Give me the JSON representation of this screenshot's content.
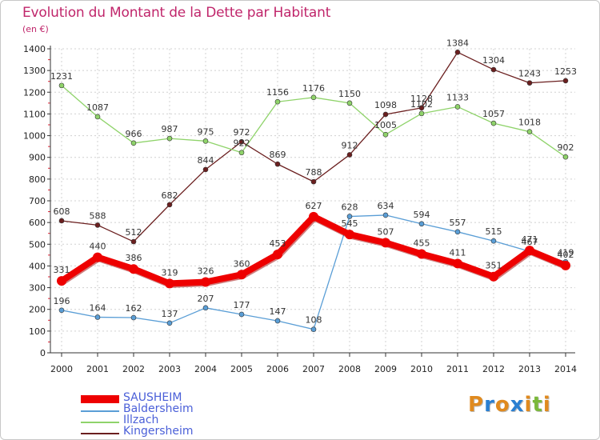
{
  "title": "Evolution du Montant de la Dette par Habitant",
  "unit": "(en €)",
  "logo": {
    "text": "Proxiti",
    "colors": [
      "#e08a1e",
      "#2a7fd1",
      "#e08a1e",
      "#2a7fd1",
      "#e08a1e",
      "#7ab83a",
      "#e08a1e"
    ]
  },
  "chart_data": {
    "type": "line",
    "title": "Evolution du Montant de la Dette par Habitant",
    "subtitle": "(en €)",
    "x": [
      "2000",
      "2001",
      "2002",
      "2003",
      "2004",
      "2005",
      "2006",
      "2007",
      "2008",
      "2009",
      "2010",
      "2011",
      "2012",
      "2013",
      "2014"
    ],
    "ylim": [
      0,
      1400
    ],
    "yticks": [
      0,
      100,
      200,
      300,
      400,
      500,
      600,
      700,
      800,
      900,
      1000,
      1100,
      1200,
      1300,
      1400
    ],
    "grid": true,
    "legend_position": "bottom-left",
    "series": [
      {
        "name": "Kingersheim",
        "color": "#6b1f1f",
        "values": [
          608,
          588,
          512,
          682,
          844,
          972,
          869,
          788,
          912,
          1098,
          1128,
          1384,
          1304,
          1243,
          1253
        ],
        "labels": [
          "608",
          "588",
          "512",
          "682",
          "844",
          "972",
          "869",
          "788",
          "912",
          "1098",
          "1128",
          "1384",
          "1304",
          "1243",
          "1253"
        ]
      },
      {
        "name": "Illzach",
        "color": "#8fd36a",
        "values": [
          1231,
          1087,
          966,
          987,
          975,
          922,
          1156,
          1176,
          1150,
          1005,
          1102,
          1133,
          1057,
          1018,
          902
        ],
        "labels": [
          "1231",
          "1087",
          "966",
          "987",
          "975",
          "922",
          "1156",
          "1176",
          "1150",
          "1005",
          "1102",
          "1133",
          "1057",
          "1018",
          "902"
        ]
      },
      {
        "name": "Baldersheim",
        "color": "#5a9ed6",
        "values": [
          196,
          164,
          162,
          137,
          207,
          177,
          147,
          108,
          628,
          634,
          594,
          557,
          515,
          467,
          419
        ],
        "labels": [
          "196",
          "164",
          "162",
          "137",
          "207",
          "177",
          "147",
          "108",
          "628",
          "634",
          "594",
          "557",
          "515",
          "467",
          "419"
        ]
      },
      {
        "name": "SAUSHEIM",
        "color": "#ee0000",
        "values": [
          331,
          440,
          386,
          319,
          326,
          360,
          453,
          627,
          545,
          507,
          455,
          411,
          351,
          471,
          402
        ],
        "labels": [
          "331",
          "440",
          "386",
          "319",
          "326",
          "360",
          "453",
          "627",
          "545",
          "507",
          "455",
          "411",
          "351",
          "471",
          "402"
        ]
      }
    ]
  },
  "legend": [
    {
      "name": "SAUSHEIM",
      "color": "#ee0000",
      "text_color": "#4a5fd8"
    },
    {
      "name": "Baldersheim",
      "color": "#5a9ed6",
      "text_color": "#4a5fd8"
    },
    {
      "name": "Illzach",
      "color": "#8fd36a",
      "text_color": "#4a5fd8"
    },
    {
      "name": "Kingersheim",
      "color": "#6b1f1f",
      "text_color": "#4a5fd8"
    }
  ]
}
